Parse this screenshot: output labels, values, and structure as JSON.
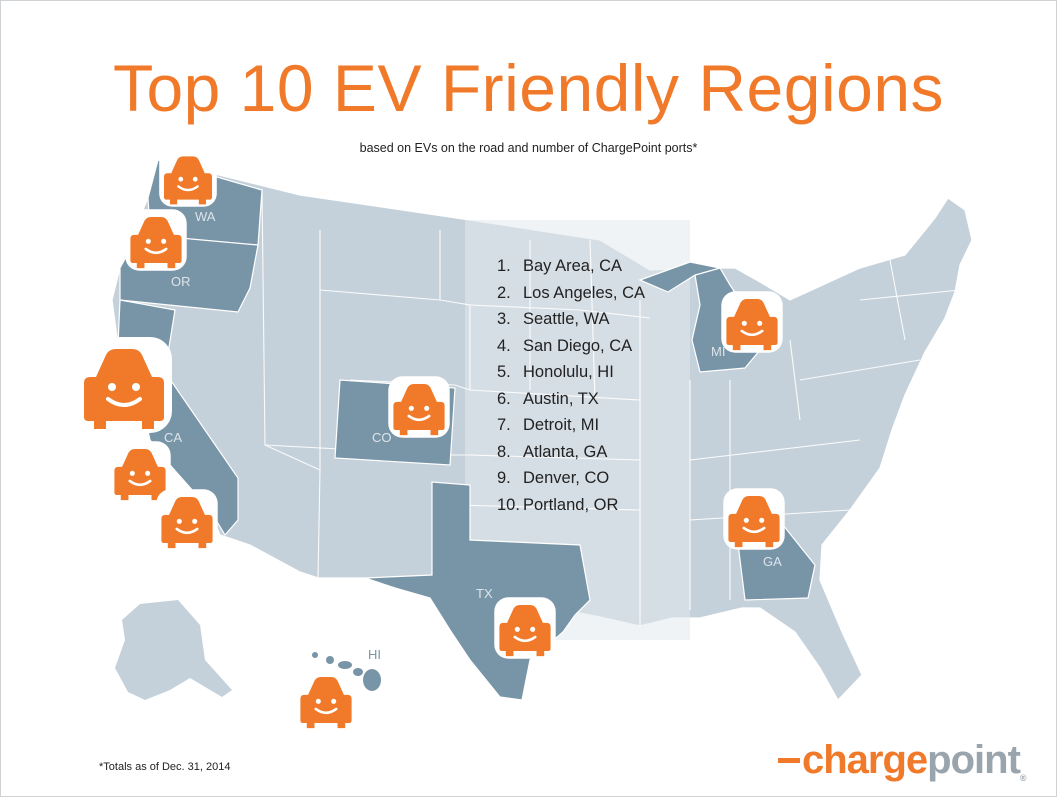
{
  "header": {
    "title": "Top 10 EV Friendly Regions",
    "subtitle": "based on EVs on the road and number of ChargePoint ports*"
  },
  "colors": {
    "accent": "#f07a2a",
    "map_base": "#c5d1da",
    "map_highlight": "#7895a8",
    "map_center_band": "#e3e9ee"
  },
  "map": {
    "highlighted_states": [
      "WA",
      "OR",
      "CA",
      "CO",
      "TX",
      "MI",
      "GA",
      "HI"
    ],
    "labels": {
      "wa": "WA",
      "or": "OR",
      "ca": "CA",
      "co": "CO",
      "tx": "TX",
      "mi": "MI",
      "ga": "GA",
      "hi": "HI"
    },
    "marker_icon": "smiling-car-icon"
  },
  "ranking": [
    {
      "rank": "1.",
      "region": "Bay Area, CA"
    },
    {
      "rank": "2.",
      "region": "Los Angeles, CA"
    },
    {
      "rank": "3.",
      "region": "Seattle, WA"
    },
    {
      "rank": "4.",
      "region": "San Diego, CA"
    },
    {
      "rank": "5.",
      "region": "Honolulu, HI"
    },
    {
      "rank": "6.",
      "region": "Austin, TX"
    },
    {
      "rank": "7.",
      "region": "Detroit, MI"
    },
    {
      "rank": "8.",
      "region": "Atlanta, GA"
    },
    {
      "rank": "9.",
      "region": "Denver, CO"
    },
    {
      "rank": "10.",
      "region": "Portland, OR"
    }
  ],
  "footnote": "*Totals as of Dec. 31, 2014",
  "logo": {
    "part1": "charge",
    "part2": "point",
    "tm": "®"
  }
}
